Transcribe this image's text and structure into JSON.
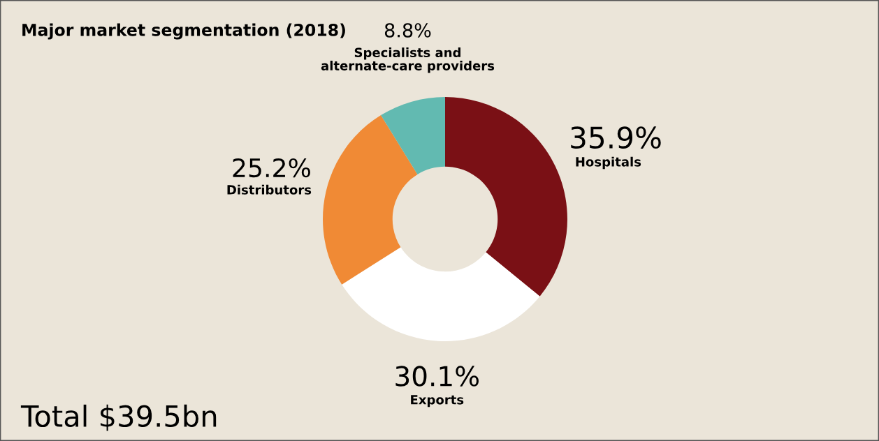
{
  "chart_data": {
    "type": "donut",
    "title": "Major market segmentation (2018)",
    "categories": [
      "Hospitals",
      "Exports",
      "Distributors",
      "Specialists and\nalternate-care providers"
    ],
    "values": [
      35.9,
      30.1,
      25.2,
      8.8
    ],
    "value_labels": [
      "35.9%",
      "30.1%",
      "25.2%",
      "8.8%"
    ],
    "colors": [
      "#7a1015",
      "#ffffff",
      "#f08a35",
      "#62bab1"
    ],
    "annotations": [
      "Total $39.5bn"
    ]
  }
}
